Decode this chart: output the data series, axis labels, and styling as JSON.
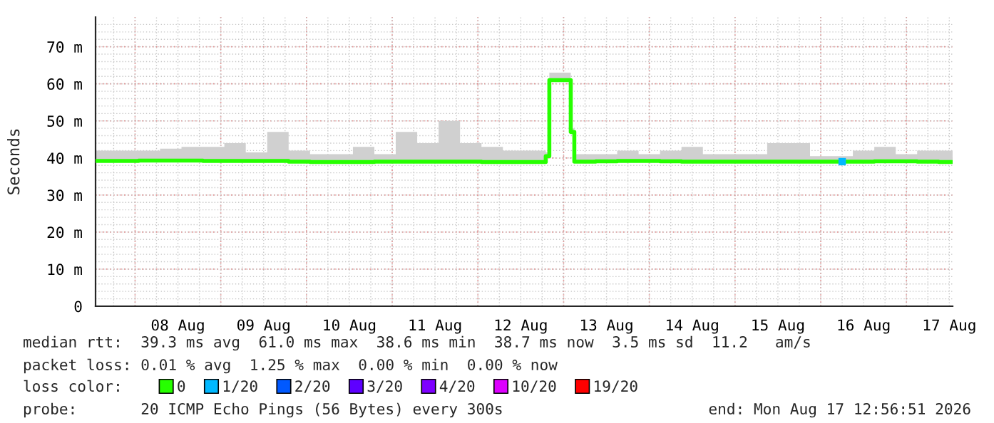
{
  "chart_data": {
    "type": "step",
    "ylabel": "Seconds",
    "legend_title": "loss color:",
    "legend": "bottom",
    "grid": true,
    "xlim": [
      "2026-08-07T12:56",
      "2026-08-17T12:56"
    ],
    "xticks": [
      {
        "value": "2026-08-08T00:00",
        "label": null
      },
      {
        "value": "2026-08-08T12:00",
        "label": "08 Aug"
      },
      {
        "value": "2026-08-09T00:00",
        "label": null
      },
      {
        "value": "2026-08-09T12:00",
        "label": "09 Aug"
      },
      {
        "value": "2026-08-10T00:00",
        "label": null
      },
      {
        "value": "2026-08-10T12:00",
        "label": "10 Aug"
      },
      {
        "value": "2026-08-11T00:00",
        "label": null
      },
      {
        "value": "2026-08-11T12:00",
        "label": "11 Aug"
      },
      {
        "value": "2026-08-12T00:00",
        "label": null
      },
      {
        "value": "2026-08-12T12:00",
        "label": "12 Aug"
      },
      {
        "value": "2026-08-13T00:00",
        "label": null
      },
      {
        "value": "2026-08-13T12:00",
        "label": "13 Aug"
      },
      {
        "value": "2026-08-14T00:00",
        "label": null
      },
      {
        "value": "2026-08-14T12:00",
        "label": "14 Aug"
      },
      {
        "value": "2026-08-15T00:00",
        "label": null
      },
      {
        "value": "2026-08-15T12:00",
        "label": "15 Aug"
      },
      {
        "value": "2026-08-16T00:00",
        "label": null
      },
      {
        "value": "2026-08-16T12:00",
        "label": "16 Aug"
      },
      {
        "value": "2026-08-17T00:00",
        "label": null
      },
      {
        "value": "2026-08-17T12:00",
        "label": "17 Aug"
      }
    ],
    "ylim": [
      0,
      78
    ],
    "yticks": [
      0,
      {
        "value": 10,
        "label": "10 m"
      },
      {
        "value": 20,
        "label": "20 m"
      },
      {
        "value": 30,
        "label": "30 m"
      },
      {
        "value": 40,
        "label": "40 m"
      },
      {
        "value": 50,
        "label": "50 m"
      },
      {
        "value": 60,
        "label": "60 m"
      },
      {
        "value": 70,
        "label": "70 m"
      }
    ],
    "series": [
      {
        "name": "0",
        "color": "#26ff00",
        "x": [
          "2026-08-07T13:00",
          "2026-08-07T19:00",
          "2026-08-08T01:00",
          "2026-08-08T07:00",
          "2026-08-08T13:00",
          "2026-08-08T19:00",
          "2026-08-09T01:00",
          "2026-08-09T07:00",
          "2026-08-09T13:00",
          "2026-08-09T19:00",
          "2026-08-10T01:00",
          "2026-08-10T07:00",
          "2026-08-10T13:00",
          "2026-08-10T19:00",
          "2026-08-11T01:00",
          "2026-08-11T07:00",
          "2026-08-11T13:00",
          "2026-08-11T19:00",
          "2026-08-12T01:00",
          "2026-08-12T07:00",
          "2026-08-12T13:00",
          "2026-08-12T19:00",
          "2026-08-12T20:00",
          "2026-08-13T02:00",
          "2026-08-13T03:00",
          "2026-08-13T09:00",
          "2026-08-13T15:00",
          "2026-08-13T21:00",
          "2026-08-14T03:00",
          "2026-08-14T09:00",
          "2026-08-14T15:00",
          "2026-08-14T21:00",
          "2026-08-15T03:00",
          "2026-08-15T09:00",
          "2026-08-15T15:00",
          "2026-08-15T21:00",
          "2026-08-16T03:00",
          "2026-08-16T09:00",
          "2026-08-16T15:00",
          "2026-08-16T21:00",
          "2026-08-17T03:00",
          "2026-08-17T09:00",
          "2026-08-17T12:55"
        ],
        "values": [
          39.2,
          39.2,
          39.3,
          39.3,
          39.3,
          39.2,
          39.2,
          39.2,
          39.2,
          39.0,
          38.9,
          38.9,
          38.9,
          39.0,
          39.0,
          39.0,
          39.0,
          39.0,
          38.9,
          38.9,
          38.9,
          40.5,
          61.0,
          47.0,
          39.0,
          39.1,
          39.2,
          39.2,
          39.1,
          39.0,
          39.0,
          39.0,
          39.0,
          39.0,
          39.0,
          39.0,
          39.0,
          39.0,
          39.1,
          39.1,
          39.0,
          38.9,
          38.9
        ],
        "lower": [
          38.8,
          38.8,
          38.9,
          38.9,
          38.9,
          38.8,
          38.8,
          38.8,
          38.8,
          38.6,
          38.6,
          38.6,
          38.6,
          38.6,
          38.6,
          38.6,
          38.6,
          38.6,
          38.6,
          38.6,
          38.6,
          40.0,
          60.5,
          46.5,
          38.6,
          38.6,
          38.8,
          38.8,
          38.7,
          38.6,
          38.6,
          38.6,
          38.6,
          38.6,
          38.6,
          38.6,
          38.6,
          38.6,
          38.7,
          38.7,
          38.6,
          38.6,
          38.6
        ],
        "upper": [
          42,
          42,
          42,
          42.5,
          43,
          43,
          44,
          41.5,
          47,
          42,
          41,
          41,
          43,
          41,
          47,
          44,
          50,
          44,
          43,
          42,
          42,
          41.5,
          63,
          48,
          41,
          41,
          42,
          41,
          42,
          43,
          41,
          41,
          41,
          44,
          44,
          40.5,
          40.5,
          42,
          43,
          41,
          42,
          42,
          42
        ]
      },
      {
        "name": "1/20",
        "color": "#00b8ff",
        "type": "scatter",
        "marker": "square",
        "x": [
          "2026-08-16T06:00"
        ],
        "values": [
          39.0
        ]
      },
      {
        "name": "2/20",
        "color": "#0059ff"
      },
      {
        "name": "3/20",
        "color": "#5e00ff"
      },
      {
        "name": "4/20",
        "color": "#7e00ff"
      },
      {
        "name": "10/20",
        "color": "#dd00ff"
      },
      {
        "name": "19/20",
        "color": "#ff0000"
      }
    ],
    "annotations": [
      "median rtt:  39.3 ms avg  61.0 ms max  38.6 ms min  38.7 ms now  3.5 ms sd  11.2   am/s",
      "packet loss: 0.01 % avg  1.25 % max  0.00 % min  0.00 % now",
      "probe:       20 ICMP Echo Pings (56 Bytes) every 300s",
      "end: Mon Aug 17 12:56:51 2026"
    ]
  }
}
